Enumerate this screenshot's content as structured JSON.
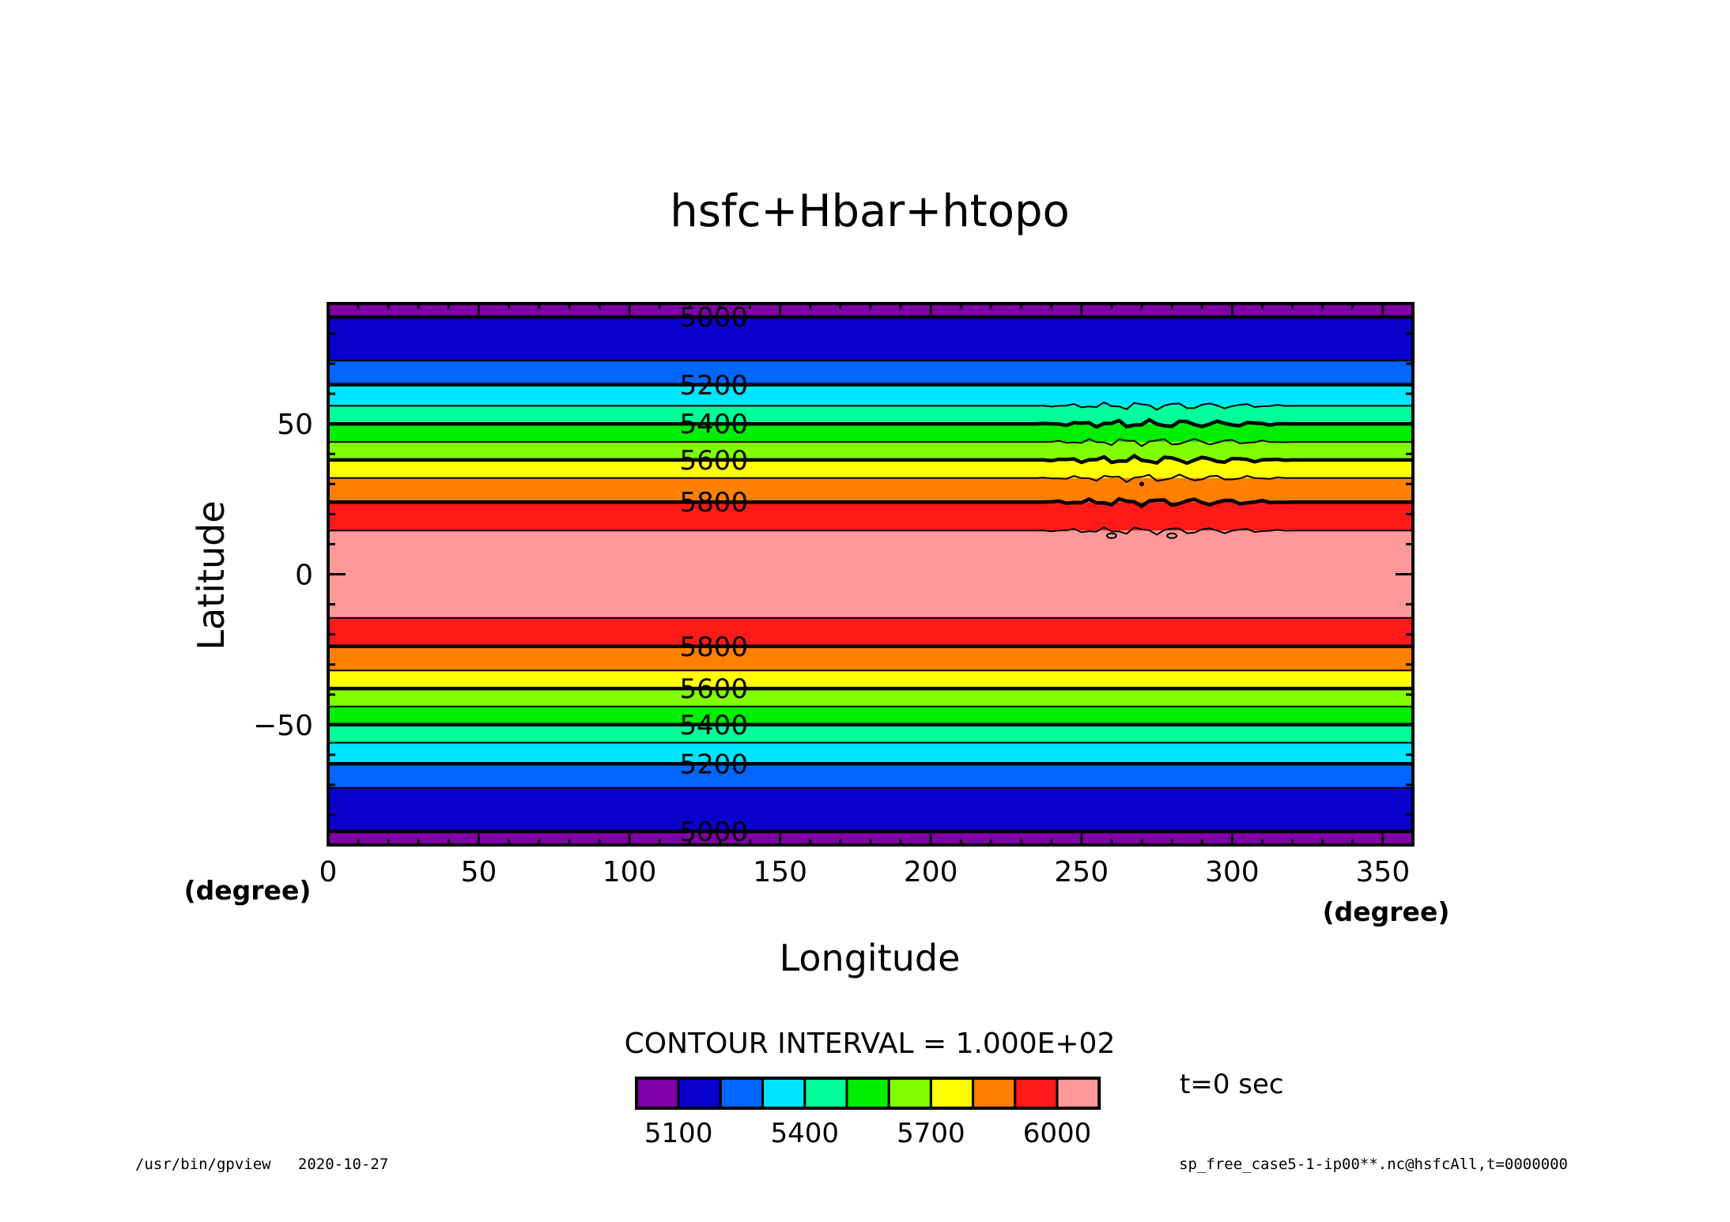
{
  "chart_data": {
    "type": "contour",
    "title": "hsfc+Hbar+htopo",
    "xlabel": "Longitude",
    "ylabel": "Latitude",
    "x_unit": "(degree)",
    "y_unit": "(degree)",
    "xlim": [
      0,
      360
    ],
    "ylim": [
      -90,
      90
    ],
    "x_ticks": [
      0,
      50,
      100,
      150,
      200,
      250,
      300,
      350
    ],
    "y_ticks": [
      -50,
      0,
      50
    ],
    "contour_interval_label": "CONTOUR INTERVAL = 1.000E+02",
    "time_label": "t=0 sec",
    "levels": [
      5000,
      5100,
      5200,
      5300,
      5400,
      5500,
      5600,
      5700,
      5800,
      5900,
      6000
    ],
    "level_colors": [
      "#7f00a6",
      "#0a00cc",
      "#0066ff",
      "#00e5ff",
      "#00ff99",
      "#00ee00",
      "#80ff00",
      "#ffff00",
      "#ff7f00",
      "#ff1a1a",
      "#ff9999"
    ],
    "legend_tick_labels": [
      "5100",
      "5400",
      "5700",
      "6000"
    ],
    "contour_labels": [
      {
        "value": "5000",
        "lat": 85.5
      },
      {
        "value": "5200",
        "lat": 63
      },
      {
        "value": "5400",
        "lat": 50
      },
      {
        "value": "5600",
        "lat": 38
      },
      {
        "value": "5800",
        "lat": 24
      },
      {
        "value": "5800",
        "lat": -24
      },
      {
        "value": "5600",
        "lat": -38
      },
      {
        "value": "5400",
        "lat": -50
      },
      {
        "value": "5200",
        "lat": -63
      },
      {
        "value": "5000",
        "lat": -85.5
      }
    ],
    "contour_lines_north": [
      {
        "level": 5000,
        "lat": 85.5
      },
      {
        "level": 5100,
        "lat": 71
      },
      {
        "level": 5200,
        "lat": 63
      },
      {
        "level": 5300,
        "lat": 56
      },
      {
        "level": 5400,
        "lat": 50
      },
      {
        "level": 5500,
        "lat": 44
      },
      {
        "level": 5600,
        "lat": 38
      },
      {
        "level": 5700,
        "lat": 32
      },
      {
        "level": 5800,
        "lat": 24
      },
      {
        "level": 5900,
        "lat": 14.5
      }
    ],
    "contour_lines_south": [
      {
        "level": 5900,
        "lat": -14.5
      },
      {
        "level": 5800,
        "lat": -24
      },
      {
        "level": 5700,
        "lat": -32
      },
      {
        "level": 5600,
        "lat": -38
      },
      {
        "level": 5500,
        "lat": -44
      },
      {
        "level": 5400,
        "lat": -50
      },
      {
        "level": 5300,
        "lat": -56
      },
      {
        "level": 5200,
        "lat": -63
      },
      {
        "level": 5100,
        "lat": -71
      },
      {
        "level": 5000,
        "lat": -85.5
      }
    ],
    "perturbation_lon_range": [
      235,
      320
    ],
    "grid": false
  },
  "footer": {
    "left": "/usr/bin/gpview   2020-10-27",
    "right": "sp_free_case5-1-ip00**.nc@hsfcAll,t=0000000"
  }
}
